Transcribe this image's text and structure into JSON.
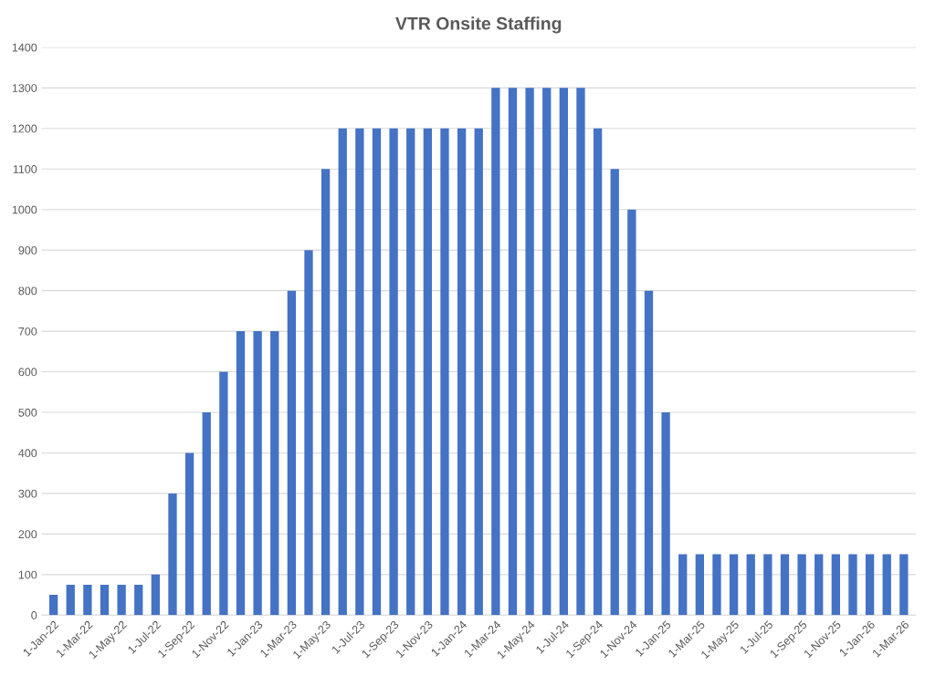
{
  "chart_data": {
    "type": "bar",
    "title": "VTR Onsite Staffing",
    "categories": [
      "1-Jan-22",
      null,
      "1-Mar-22",
      null,
      "1-May-22",
      null,
      "1-Jul-22",
      null,
      "1-Sep-22",
      null,
      "1-Nov-22",
      null,
      "1-Jan-23",
      null,
      "1-Mar-23",
      null,
      "1-May-23",
      null,
      "1-Jul-23",
      null,
      "1-Sep-23",
      null,
      "1-Nov-23",
      null,
      "1-Jan-24",
      null,
      "1-Mar-24",
      null,
      "1-May-24",
      null,
      "1-Jul-24",
      null,
      "1-Sep-24",
      null,
      "1-Nov-24",
      null,
      "1-Jan-25",
      null,
      "1-Mar-25",
      null,
      "1-May-25",
      null,
      "1-Jul-25",
      null,
      "1-Sep-25",
      null,
      "1-Nov-25",
      null,
      "1-Jan-26",
      null,
      "1-Mar-26"
    ],
    "values": [
      50,
      75,
      75,
      75,
      75,
      75,
      100,
      300,
      400,
      500,
      600,
      700,
      700,
      700,
      800,
      900,
      1100,
      1200,
      1200,
      1200,
      1200,
      1200,
      1200,
      1200,
      1200,
      1200,
      1300,
      1300,
      1300,
      1300,
      1300,
      1300,
      1200,
      1100,
      1000,
      800,
      500,
      150,
      150,
      150,
      150,
      150,
      150,
      150,
      150,
      150,
      150,
      150,
      150,
      150,
      150
    ],
    "color": "#4472c4",
    "ylim": [
      0,
      1400
    ],
    "yticks": [
      0,
      100,
      200,
      300,
      400,
      500,
      600,
      700,
      800,
      900,
      1000,
      1100,
      1200,
      1300,
      1400
    ],
    "grid": "y",
    "legend": false
  }
}
